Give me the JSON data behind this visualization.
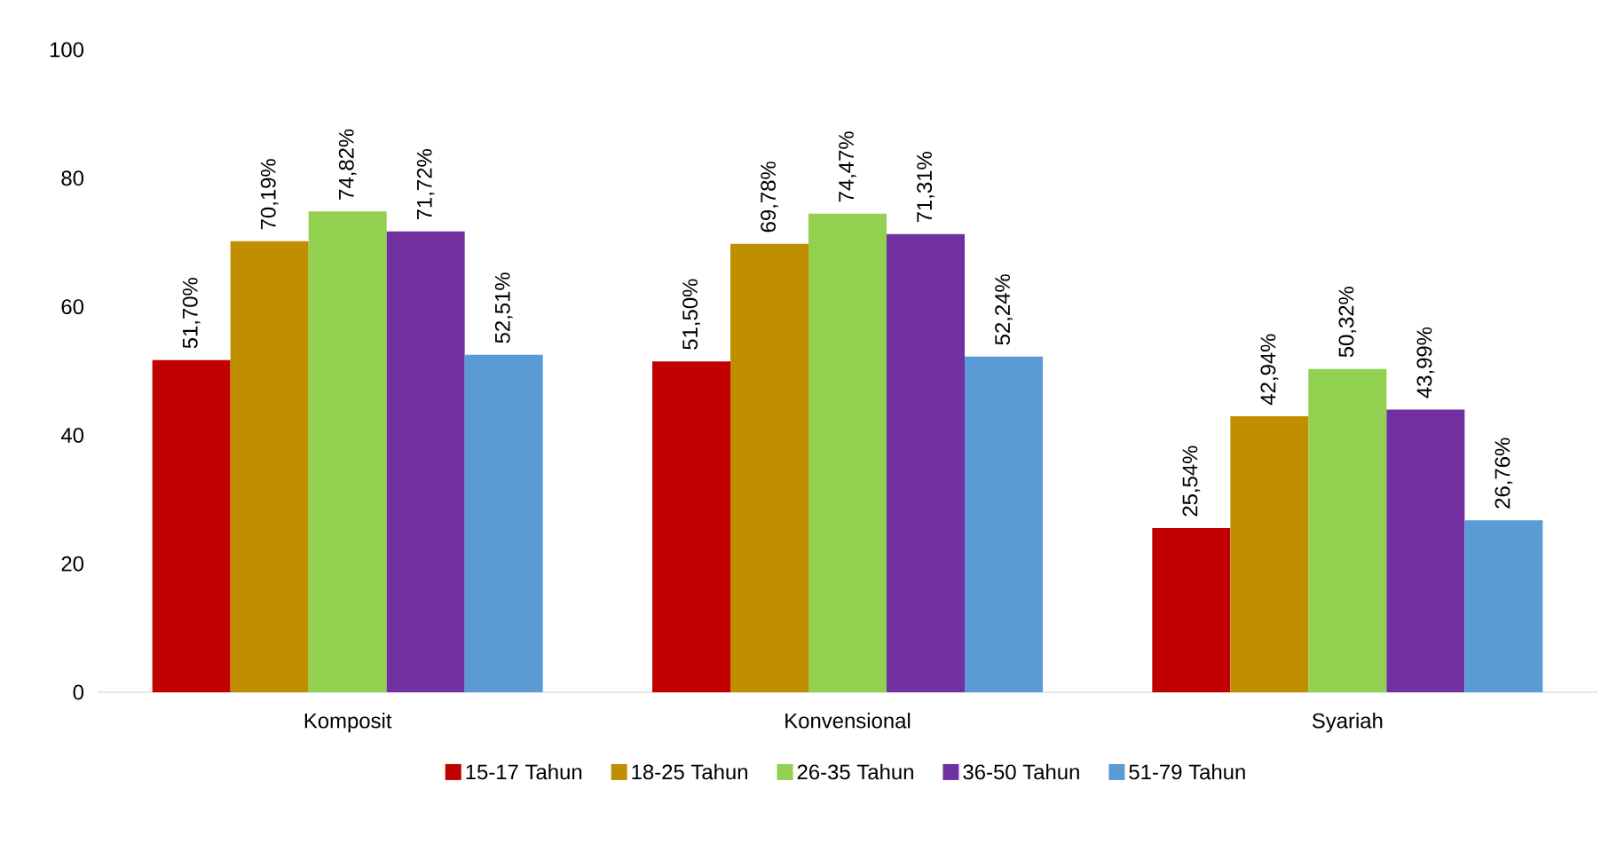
{
  "chart_data": {
    "type": "bar",
    "categories": [
      "Komposit",
      "Konvensional",
      "Syariah"
    ],
    "series": [
      {
        "name": "15-17 Tahun",
        "color": "#c00000",
        "values": [
          51.7,
          51.5,
          25.54
        ],
        "value_labels": [
          "51,70%",
          "51,50%",
          "25,54%"
        ]
      },
      {
        "name": "18-25 Tahun",
        "color": "#bf8f00",
        "values": [
          70.19,
          69.78,
          42.94
        ],
        "value_labels": [
          "70,19%",
          "69,78%",
          "42,94%"
        ]
      },
      {
        "name": "26-35 Tahun",
        "color": "#92d050",
        "values": [
          74.82,
          74.47,
          50.32
        ],
        "value_labels": [
          "74,82%",
          "74,47%",
          "50,32%"
        ]
      },
      {
        "name": "36-50 Tahun",
        "color": "#7030a0",
        "values": [
          71.72,
          71.31,
          43.99
        ],
        "value_labels": [
          "71,72%",
          "71,31%",
          "43,99%"
        ]
      },
      {
        "name": "51-79 Tahun",
        "color": "#5b9bd5",
        "values": [
          52.51,
          52.24,
          26.76
        ],
        "value_labels": [
          "52,51%",
          "52,24%",
          "26,76%"
        ]
      }
    ],
    "ylim": [
      0,
      100
    ],
    "yticks": [
      0,
      20,
      40,
      60,
      80,
      100
    ],
    "grid": false,
    "legend": "bottom"
  }
}
